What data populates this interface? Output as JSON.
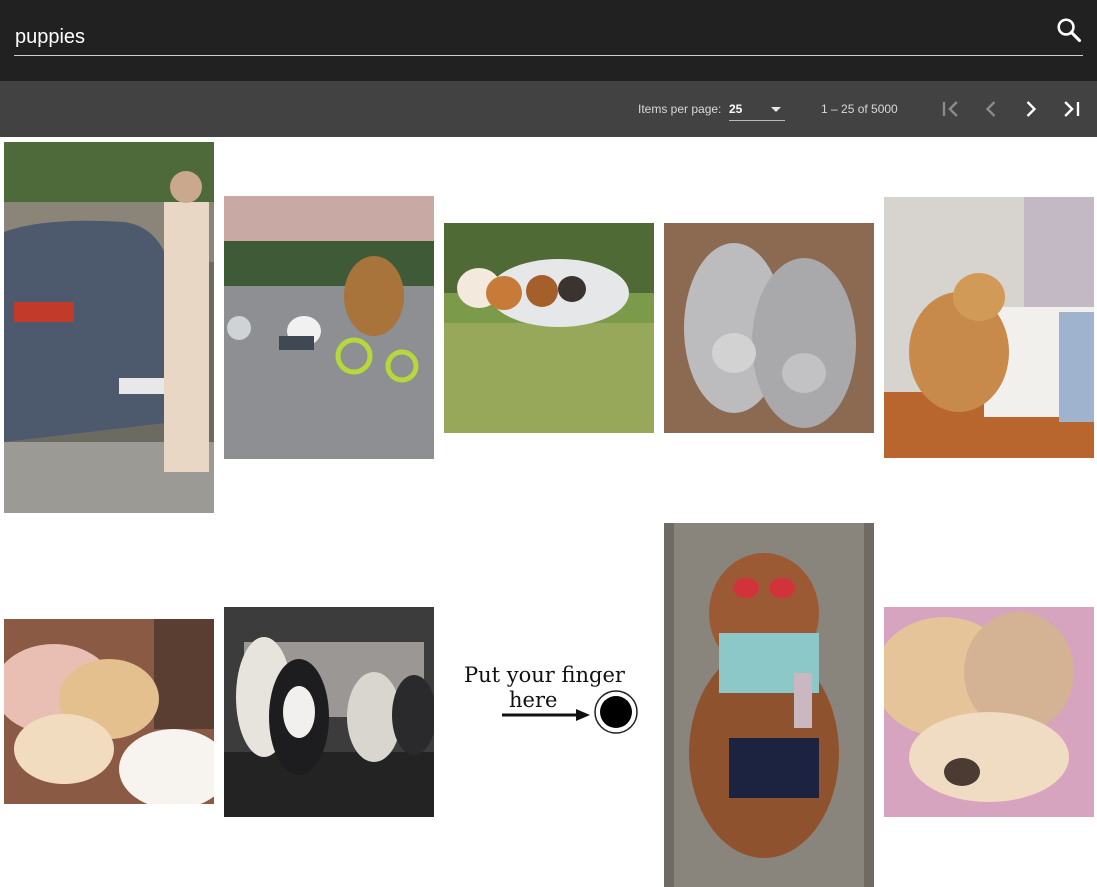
{
  "search": {
    "query": "puppies",
    "icon": "search-icon"
  },
  "paginator": {
    "items_per_page_label": "Items per page:",
    "items_per_page_value": "25",
    "range_label": "1 – 25 of 5000",
    "icons": [
      "first-page-icon",
      "previous-page-icon",
      "next-page-icon",
      "last-page-icon"
    ]
  },
  "gallery": {
    "finger_text_line1": "Put your finger",
    "finger_text_line2": "here"
  },
  "colors": {
    "toolbar": "#212121",
    "paginator": "#424242",
    "text": "#ffffff"
  }
}
